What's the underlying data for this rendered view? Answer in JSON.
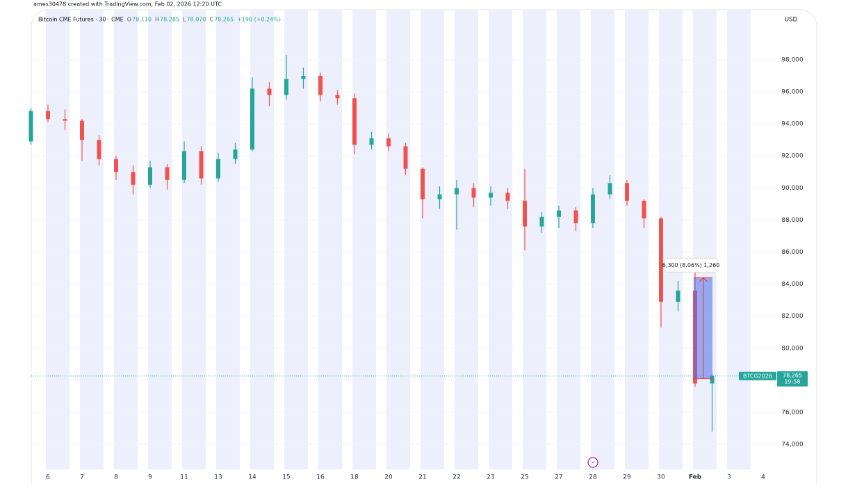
{
  "chart_data": {
    "type": "candlestick",
    "header": "ames30478 created with TradingView.com, Feb 02, 2026 12:20 UTC",
    "title": "Bitcoin CME Futures · 30 · CME",
    "ohlc_legend": [
      {
        "key": "O",
        "value": "78,110"
      },
      {
        "key": "H",
        "value": "78,285"
      },
      {
        "key": "L",
        "value": "78,070"
      },
      {
        "key": "C",
        "value": "78,265"
      }
    ],
    "change": "+190 (+0.24%)",
    "currency": "USD",
    "up_color": "#26a69a",
    "down_color": "#ef5350",
    "categories": [
      null,
      "6",
      null,
      "7",
      null,
      "8",
      null,
      "9",
      null,
      "11",
      null,
      "13",
      null,
      "14",
      null,
      "15",
      null,
      "16",
      null,
      "18",
      null,
      "20",
      null,
      "21",
      null,
      "22",
      null,
      "23",
      null,
      "25",
      null,
      "27",
      null,
      "28",
      null,
      "29",
      null,
      "30",
      null,
      "Feb",
      null,
      "3",
      null,
      "4",
      null
    ],
    "open": [
      92900,
      94800,
      94300,
      94200,
      93000,
      91800,
      91000,
      90200,
      91300,
      90500,
      92300,
      90600,
      91800,
      92400,
      96200,
      95800,
      96800,
      97000,
      95800,
      95600,
      92700,
      93100,
      92600,
      91200,
      89300,
      89600,
      90000,
      89400,
      89700,
      89200,
      87600,
      88200,
      88600,
      87800,
      89600,
      90300,
      89200,
      88100,
      82900,
      83600,
      77800,
      null,
      null,
      null,
      null
    ],
    "high": [
      95000,
      95200,
      94900,
      94300,
      93300,
      92000,
      91400,
      91700,
      91500,
      92900,
      92600,
      92200,
      92800,
      96900,
      96600,
      98300,
      97500,
      97200,
      96100,
      95900,
      93500,
      93400,
      92800,
      91300,
      90100,
      90500,
      90300,
      90100,
      90000,
      91200,
      88500,
      88900,
      88800,
      90000,
      90800,
      90500,
      89300,
      88200,
      84200,
      84900,
      78400,
      null,
      null,
      null,
      null
    ],
    "low": [
      92700,
      94100,
      93600,
      91700,
      91400,
      90500,
      89600,
      90000,
      89900,
      90300,
      90200,
      90400,
      91500,
      92300,
      95100,
      95500,
      96200,
      95400,
      95200,
      92100,
      92400,
      92300,
      90800,
      88100,
      88700,
      87400,
      88800,
      88900,
      88700,
      86100,
      87200,
      87500,
      87300,
      87500,
      89300,
      88900,
      87500,
      81300,
      82300,
      77600,
      74800,
      null,
      null,
      null,
      null
    ],
    "close": [
      94800,
      94300,
      94200,
      93000,
      91800,
      91000,
      90200,
      91300,
      90500,
      92300,
      90600,
      91800,
      92400,
      96200,
      95800,
      96800,
      97000,
      95800,
      95600,
      92700,
      93100,
      92600,
      91200,
      89300,
      89600,
      90000,
      89400,
      89700,
      89200,
      87600,
      88200,
      88600,
      87800,
      89600,
      90300,
      89200,
      88100,
      82900,
      83600,
      77800,
      78265,
      null,
      null,
      null,
      null
    ],
    "ylim": [
      72440,
      101080
    ],
    "yticks": [
      {
        "value": 74000,
        "label": "74,000"
      },
      {
        "value": 76000,
        "label": "76,000"
      },
      {
        "value": 78000,
        "label": "78,000"
      },
      {
        "value": 80000,
        "label": "80,000"
      },
      {
        "value": 82000,
        "label": "82,000"
      },
      {
        "value": 84000,
        "label": "84,000"
      },
      {
        "value": 86000,
        "label": "86,000"
      },
      {
        "value": 88000,
        "label": "88,000"
      },
      {
        "value": 90000,
        "label": "90,000"
      },
      {
        "value": 92000,
        "label": "92,000"
      },
      {
        "value": 94000,
        "label": "94,000"
      },
      {
        "value": 96000,
        "label": "96,000"
      },
      {
        "value": 98000,
        "label": "98,000"
      }
    ],
    "grid": true,
    "last_price": {
      "value": 78265,
      "label": "78,265",
      "symbol": "BTCG2026",
      "countdown": "19:58"
    },
    "measure": {
      "from": 78100,
      "to": 84400,
      "label": "6,300 (8.06%) 1,260"
    }
  }
}
